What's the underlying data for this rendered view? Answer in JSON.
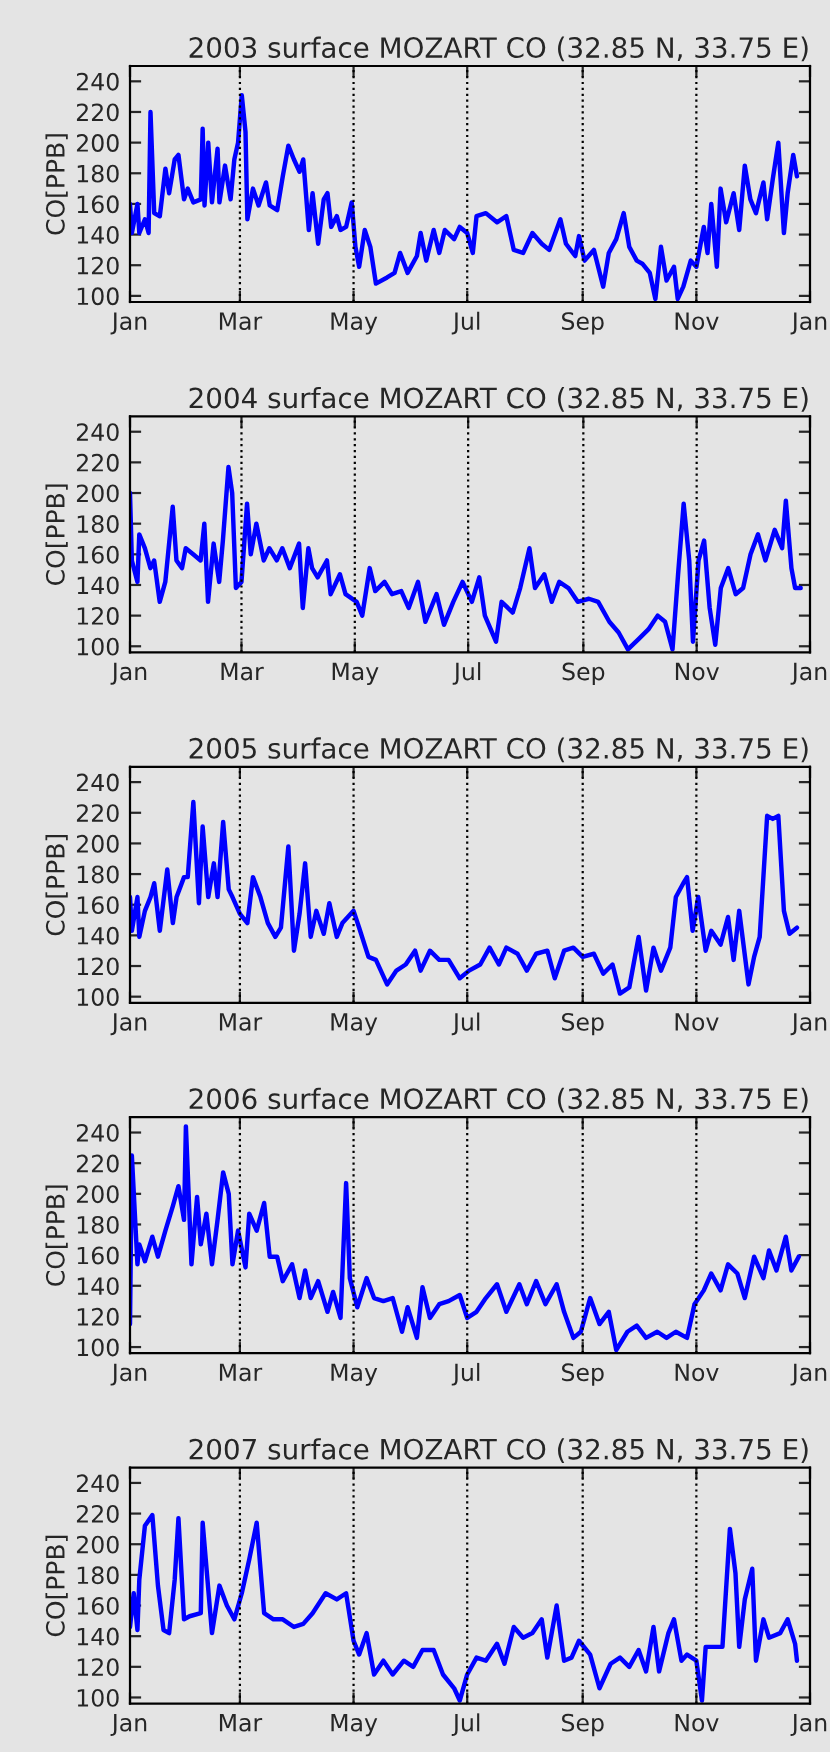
{
  "chart_data": [
    {
      "type": "line",
      "title": "2003 surface MOZART CO (32.85 N, 33.75 E)",
      "ylabel": "CO[PPB]",
      "grid": false,
      "marker": "none",
      "line_style": "solid",
      "xlim": [
        "2003-01-01",
        "2004-01-01"
      ],
      "ylim": [
        96,
        250
      ],
      "yticks": [
        100,
        120,
        140,
        160,
        180,
        200,
        220,
        240
      ],
      "xticks": [
        {
          "value": "2003-01-01",
          "label": "Jan"
        },
        {
          "value": "2003-03-01",
          "label": "Mar"
        },
        {
          "value": "2003-05-01",
          "label": "May"
        },
        {
          "value": "2003-07-01",
          "label": "Jul"
        },
        {
          "value": "2003-09-01",
          "label": "Sep"
        },
        {
          "value": "2003-11-01",
          "label": "Nov"
        },
        {
          "value": "2004-01-01",
          "label": "Jan"
        }
      ],
      "ref_lines": [
        {
          "axis": "x",
          "value": "2003-03-01",
          "color": "#000000",
          "line_style": "dotted"
        },
        {
          "axis": "x",
          "value": "2003-05-01",
          "color": "#000000",
          "line_style": "dotted"
        },
        {
          "axis": "x",
          "value": "2003-07-01",
          "color": "#000000",
          "line_style": "dotted"
        },
        {
          "axis": "x",
          "value": "2003-09-01",
          "color": "#000000",
          "line_style": "dotted"
        },
        {
          "axis": "x",
          "value": "2003-11-01",
          "color": "#000000",
          "line_style": "dotted"
        }
      ],
      "series": [
        {
          "color": "#0000ff",
          "x": [
            "2003-01-01",
            "2003-01-02",
            "2003-01-05",
            "2003-01-06",
            "2003-01-09",
            "2003-01-11",
            "2003-01-12",
            "2003-01-14",
            "2003-01-17",
            "2003-01-20",
            "2003-01-22",
            "2003-01-25",
            "2003-01-27",
            "2003-01-30",
            "2003-02-01",
            "2003-02-04",
            "2003-02-08",
            "2003-02-09",
            "2003-02-10",
            "2003-02-12",
            "2003-02-14",
            "2003-02-17",
            "2003-02-18",
            "2003-02-21",
            "2003-02-24",
            "2003-02-26",
            "2003-02-28",
            "2003-03-02",
            "2003-03-04",
            "2003-03-05",
            "2003-03-08",
            "2003-03-11",
            "2003-03-15",
            "2003-03-17",
            "2003-03-21",
            "2003-03-24",
            "2003-03-27",
            "2003-03-30",
            "2003-04-02",
            "2003-04-04",
            "2003-04-07",
            "2003-04-09",
            "2003-04-12",
            "2003-04-15",
            "2003-04-17",
            "2003-04-19",
            "2003-04-22",
            "2003-04-24",
            "2003-04-27",
            "2003-04-30",
            "2003-05-02",
            "2003-05-04",
            "2003-05-07",
            "2003-05-10",
            "2003-05-13",
            "2003-05-19",
            "2003-05-23",
            "2003-05-26",
            "2003-05-30",
            "2003-06-04",
            "2003-06-06",
            "2003-06-09",
            "2003-06-13",
            "2003-06-16",
            "2003-06-19",
            "2003-06-24",
            "2003-06-27",
            "2003-07-01",
            "2003-07-04",
            "2003-07-06",
            "2003-07-11",
            "2003-07-17",
            "2003-07-22",
            "2003-07-26",
            "2003-07-31",
            "2003-08-05",
            "2003-08-10",
            "2003-08-14",
            "2003-08-20",
            "2003-08-23",
            "2003-08-28",
            "2003-08-30",
            "2003-09-02",
            "2003-09-07",
            "2003-09-12",
            "2003-09-15",
            "2003-09-19",
            "2003-09-23",
            "2003-09-26",
            "2003-09-30",
            "2003-10-03",
            "2003-10-07",
            "2003-10-10",
            "2003-10-13",
            "2003-10-16",
            "2003-10-20",
            "2003-10-22",
            "2003-10-25",
            "2003-10-29",
            "2003-11-01",
            "2003-11-05",
            "2003-11-07",
            "2003-11-09",
            "2003-11-12",
            "2003-11-14",
            "2003-11-17",
            "2003-11-21",
            "2003-11-24",
            "2003-11-27",
            "2003-11-30",
            "2003-12-03",
            "2003-12-07",
            "2003-12-09",
            "2003-12-12",
            "2003-12-15",
            "2003-12-18",
            "2003-12-20",
            "2003-12-23",
            "2003-12-25"
          ],
          "values": [
            160,
            141,
            160,
            141,
            150,
            141,
            220,
            154,
            152,
            183,
            167,
            189,
            192,
            163,
            170,
            161,
            163,
            209,
            159,
            200,
            161,
            196,
            161,
            185,
            163,
            189,
            200,
            231,
            207,
            150,
            170,
            159,
            174,
            159,
            156,
            178,
            198,
            189,
            181,
            189,
            143,
            167,
            134,
            163,
            167,
            145,
            152,
            143,
            145,
            161,
            132,
            119,
            143,
            132,
            108,
            112,
            115,
            128,
            115,
            126,
            141,
            123,
            143,
            128,
            143,
            137,
            145,
            141,
            128,
            152,
            154,
            148,
            152,
            130,
            128,
            141,
            134,
            130,
            150,
            134,
            126,
            139,
            123,
            130,
            106,
            128,
            137,
            154,
            132,
            123,
            121,
            115,
            98,
            132,
            110,
            119,
            98,
            106,
            123,
            119,
            145,
            128,
            160,
            119,
            170,
            148,
            167,
            143,
            185,
            163,
            154,
            174,
            150,
            176,
            200,
            141,
            167,
            192,
            178
          ]
        }
      ]
    },
    {
      "type": "line",
      "title": "2004 surface MOZART CO (32.85 N, 33.75 E)",
      "ylabel": "CO[PPB]",
      "grid": false,
      "marker": "none",
      "line_style": "solid",
      "xlim": [
        "2004-01-01",
        "2005-01-01"
      ],
      "ylim": [
        96,
        250
      ],
      "yticks": [
        100,
        120,
        140,
        160,
        180,
        200,
        220,
        240
      ],
      "xticks": [
        {
          "value": "2004-01-01",
          "label": "Jan"
        },
        {
          "value": "2004-03-01",
          "label": "Mar"
        },
        {
          "value": "2004-05-01",
          "label": "May"
        },
        {
          "value": "2004-07-01",
          "label": "Jul"
        },
        {
          "value": "2004-09-01",
          "label": "Sep"
        },
        {
          "value": "2004-11-01",
          "label": "Nov"
        },
        {
          "value": "2005-01-01",
          "label": "Jan"
        }
      ],
      "ref_lines": [
        {
          "axis": "x",
          "value": "2004-03-01",
          "color": "#000000",
          "line_style": "dotted"
        },
        {
          "axis": "x",
          "value": "2004-05-01",
          "color": "#000000",
          "line_style": "dotted"
        },
        {
          "axis": "x",
          "value": "2004-07-01",
          "color": "#000000",
          "line_style": "dotted"
        },
        {
          "axis": "x",
          "value": "2004-09-01",
          "color": "#000000",
          "line_style": "dotted"
        },
        {
          "axis": "x",
          "value": "2004-11-01",
          "color": "#000000",
          "line_style": "dotted"
        }
      ],
      "series": [
        {
          "color": "#0000ff",
          "x": [
            "2004-01-01",
            "2004-01-02",
            "2004-01-05",
            "2004-01-06",
            "2004-01-09",
            "2004-01-12",
            "2004-01-14",
            "2004-01-17",
            "2004-01-20",
            "2004-01-24",
            "2004-01-26",
            "2004-01-29",
            "2004-01-31",
            "2004-02-04",
            "2004-02-08",
            "2004-02-10",
            "2004-02-12",
            "2004-02-15",
            "2004-02-18",
            "2004-02-20",
            "2004-02-23",
            "2004-02-25",
            "2004-02-27",
            "2004-03-01",
            "2004-03-04",
            "2004-03-06",
            "2004-03-09",
            "2004-03-13",
            "2004-03-16",
            "2004-03-20",
            "2004-03-23",
            "2004-03-27",
            "2004-04-01",
            "2004-04-03",
            "2004-04-06",
            "2004-04-08",
            "2004-04-11",
            "2004-04-16",
            "2004-04-18",
            "2004-04-23",
            "2004-04-26",
            "2004-05-02",
            "2004-05-05",
            "2004-05-09",
            "2004-05-12",
            "2004-05-17",
            "2004-05-21",
            "2004-05-26",
            "2004-05-30",
            "2004-06-04",
            "2004-06-08",
            "2004-06-14",
            "2004-06-18",
            "2004-06-23",
            "2004-06-28",
            "2004-07-03",
            "2004-07-07",
            "2004-07-10",
            "2004-07-16",
            "2004-07-19",
            "2004-07-25",
            "2004-07-29",
            "2004-08-03",
            "2004-08-06",
            "2004-08-11",
            "2004-08-15",
            "2004-08-19",
            "2004-08-24",
            "2004-08-29",
            "2004-09-04",
            "2004-09-09",
            "2004-09-15",
            "2004-09-20",
            "2004-09-25",
            "2004-10-01",
            "2004-10-06",
            "2004-10-11",
            "2004-10-15",
            "2004-10-19",
            "2004-10-22",
            "2004-10-25",
            "2004-10-28",
            "2004-10-30",
            "2004-11-02",
            "2004-11-05",
            "2004-11-08",
            "2004-11-11",
            "2004-11-14",
            "2004-11-18",
            "2004-11-22",
            "2004-11-26",
            "2004-11-30",
            "2004-12-04",
            "2004-12-08",
            "2004-12-13",
            "2004-12-17",
            "2004-12-19",
            "2004-12-22",
            "2004-12-24",
            "2004-12-27"
          ],
          "values": [
            200,
            156,
            142,
            173,
            164,
            151,
            156,
            129,
            142,
            191,
            156,
            151,
            164,
            160,
            156,
            180,
            129,
            167,
            142,
            169,
            217,
            200,
            138,
            142,
            193,
            160,
            180,
            156,
            164,
            156,
            164,
            151,
            167,
            125,
            164,
            151,
            145,
            156,
            134,
            147,
            134,
            129,
            120,
            151,
            136,
            142,
            134,
            136,
            125,
            142,
            116,
            134,
            114,
            129,
            142,
            129,
            145,
            120,
            103,
            129,
            122,
            138,
            164,
            138,
            147,
            129,
            142,
            138,
            129,
            131,
            129,
            116,
            109,
            98,
            105,
            111,
            120,
            116,
            98,
            147,
            193,
            156,
            103,
            156,
            169,
            125,
            101,
            138,
            151,
            134,
            138,
            160,
            173,
            156,
            176,
            164,
            195,
            151,
            138,
            138
          ]
        }
      ]
    },
    {
      "type": "line",
      "title": "2005 surface MOZART CO (32.85 N, 33.75 E)",
      "ylabel": "CO[PPB]",
      "grid": false,
      "marker": "none",
      "line_style": "solid",
      "xlim": [
        "2005-01-01",
        "2006-01-01"
      ],
      "ylim": [
        96,
        250
      ],
      "yticks": [
        100,
        120,
        140,
        160,
        180,
        200,
        220,
        240
      ],
      "xticks": [
        {
          "value": "2005-01-01",
          "label": "Jan"
        },
        {
          "value": "2005-03-01",
          "label": "Mar"
        },
        {
          "value": "2005-05-01",
          "label": "May"
        },
        {
          "value": "2005-07-01",
          "label": "Jul"
        },
        {
          "value": "2005-09-01",
          "label": "Sep"
        },
        {
          "value": "2005-11-01",
          "label": "Nov"
        },
        {
          "value": "2006-01-01",
          "label": "Jan"
        }
      ],
      "ref_lines": [
        {
          "axis": "x",
          "value": "2005-03-01",
          "color": "#000000",
          "line_style": "dotted"
        },
        {
          "axis": "x",
          "value": "2005-05-01",
          "color": "#000000",
          "line_style": "dotted"
        },
        {
          "axis": "x",
          "value": "2005-07-01",
          "color": "#000000",
          "line_style": "dotted"
        },
        {
          "axis": "x",
          "value": "2005-09-01",
          "color": "#000000",
          "line_style": "dotted"
        },
        {
          "axis": "x",
          "value": "2005-11-01",
          "color": "#000000",
          "line_style": "dotted"
        }
      ],
      "series": [
        {
          "color": "#0000ff",
          "x": [
            "2005-01-01",
            "2005-01-02",
            "2005-01-05",
            "2005-01-06",
            "2005-01-09",
            "2005-01-12",
            "2005-01-14",
            "2005-01-17",
            "2005-01-21",
            "2005-01-24",
            "2005-01-26",
            "2005-01-30",
            "2005-02-01",
            "2005-02-04",
            "2005-02-07",
            "2005-02-09",
            "2005-02-12",
            "2005-02-15",
            "2005-02-17",
            "2005-02-20",
            "2005-02-23",
            "2005-02-25",
            "2005-03-01",
            "2005-03-05",
            "2005-03-08",
            "2005-03-12",
            "2005-03-16",
            "2005-03-20",
            "2005-03-23",
            "2005-03-27",
            "2005-03-30",
            "2005-04-02",
            "2005-04-05",
            "2005-04-08",
            "2005-04-11",
            "2005-04-15",
            "2005-04-18",
            "2005-04-22",
            "2005-04-25",
            "2005-05-01",
            "2005-05-04",
            "2005-05-09",
            "2005-05-13",
            "2005-05-19",
            "2005-05-24",
            "2005-05-29",
            "2005-06-03",
            "2005-06-06",
            "2005-06-11",
            "2005-06-16",
            "2005-06-21",
            "2005-06-27",
            "2005-07-02",
            "2005-07-08",
            "2005-07-13",
            "2005-07-18",
            "2005-07-22",
            "2005-07-28",
            "2005-08-02",
            "2005-08-07",
            "2005-08-13",
            "2005-08-17",
            "2005-08-22",
            "2005-08-27",
            "2005-09-01",
            "2005-09-07",
            "2005-09-12",
            "2005-09-17",
            "2005-09-21",
            "2005-09-26",
            "2005-10-01",
            "2005-10-05",
            "2005-10-09",
            "2005-10-13",
            "2005-10-18",
            "2005-10-21",
            "2005-10-25",
            "2005-10-27",
            "2005-10-30",
            "2005-11-02",
            "2005-11-06",
            "2005-11-09",
            "2005-11-14",
            "2005-11-18",
            "2005-11-21",
            "2005-11-24",
            "2005-11-29",
            "2005-12-02",
            "2005-12-05",
            "2005-12-09",
            "2005-12-12",
            "2005-12-15",
            "2005-12-18",
            "2005-12-21",
            "2005-12-25"
          ],
          "values": [
            165,
            143,
            165,
            139,
            156,
            165,
            174,
            143,
            183,
            148,
            165,
            178,
            178,
            227,
            161,
            211,
            165,
            187,
            165,
            214,
            170,
            165,
            154,
            148,
            178,
            165,
            148,
            139,
            145,
            198,
            130,
            154,
            187,
            139,
            156,
            141,
            161,
            139,
            148,
            156,
            145,
            126,
            124,
            108,
            117,
            121,
            130,
            117,
            130,
            124,
            124,
            112,
            117,
            121,
            132,
            121,
            132,
            128,
            117,
            128,
            130,
            112,
            130,
            132,
            126,
            128,
            115,
            121,
            102,
            106,
            139,
            104,
            132,
            117,
            132,
            165,
            174,
            178,
            143,
            165,
            130,
            143,
            134,
            152,
            124,
            156,
            108,
            126,
            139,
            218,
            216,
            218,
            156,
            141,
            145
          ]
        }
      ]
    },
    {
      "type": "line",
      "title": "2006 surface MOZART CO (32.85 N, 33.75 E)",
      "ylabel": "CO[PPB]",
      "grid": false,
      "marker": "none",
      "line_style": "solid",
      "xlim": [
        "2006-01-01",
        "2007-01-01"
      ],
      "ylim": [
        96,
        250
      ],
      "yticks": [
        100,
        120,
        140,
        160,
        180,
        200,
        220,
        240
      ],
      "xticks": [
        {
          "value": "2006-01-01",
          "label": "Jan"
        },
        {
          "value": "2006-03-01",
          "label": "Mar"
        },
        {
          "value": "2006-05-01",
          "label": "May"
        },
        {
          "value": "2006-07-01",
          "label": "Jul"
        },
        {
          "value": "2006-09-01",
          "label": "Sep"
        },
        {
          "value": "2006-11-01",
          "label": "Nov"
        },
        {
          "value": "2007-01-01",
          "label": "Jan"
        }
      ],
      "ref_lines": [
        {
          "axis": "x",
          "value": "2006-03-01",
          "color": "#000000",
          "line_style": "dotted"
        },
        {
          "axis": "x",
          "value": "2006-05-01",
          "color": "#000000",
          "line_style": "dotted"
        },
        {
          "axis": "x",
          "value": "2006-07-01",
          "color": "#000000",
          "line_style": "dotted"
        },
        {
          "axis": "x",
          "value": "2006-09-01",
          "color": "#000000",
          "line_style": "dotted"
        },
        {
          "axis": "x",
          "value": "2006-11-01",
          "color": "#000000",
          "line_style": "dotted"
        }
      ],
      "series": [
        {
          "color": "#0000ff",
          "x": [
            "2006-01-01",
            "2006-01-02",
            "2006-01-05",
            "2006-01-06",
            "2006-01-09",
            "2006-01-13",
            "2006-01-16",
            "2006-01-20",
            "2006-01-24",
            "2006-01-27",
            "2006-01-30",
            "2006-01-31",
            "2006-02-03",
            "2006-02-06",
            "2006-02-08",
            "2006-02-11",
            "2006-02-14",
            "2006-02-17",
            "2006-02-20",
            "2006-02-23",
            "2006-02-25",
            "2006-02-28",
            "2006-03-04",
            "2006-03-06",
            "2006-03-10",
            "2006-03-14",
            "2006-03-17",
            "2006-03-21",
            "2006-03-24",
            "2006-03-29",
            "2006-04-02",
            "2006-04-05",
            "2006-04-08",
            "2006-04-12",
            "2006-04-17",
            "2006-04-20",
            "2006-04-24",
            "2006-04-27",
            "2006-04-29",
            "2006-05-03",
            "2006-05-08",
            "2006-05-12",
            "2006-05-17",
            "2006-05-22",
            "2006-05-27",
            "2006-05-30",
            "2006-06-04",
            "2006-06-07",
            "2006-06-11",
            "2006-06-16",
            "2006-06-21",
            "2006-06-27",
            "2006-07-01",
            "2006-07-06",
            "2006-07-11",
            "2006-07-17",
            "2006-07-22",
            "2006-07-29",
            "2006-08-02",
            "2006-08-07",
            "2006-08-12",
            "2006-08-18",
            "2006-08-22",
            "2006-08-27",
            "2006-08-31",
            "2006-09-05",
            "2006-09-10",
            "2006-09-15",
            "2006-09-19",
            "2006-09-25",
            "2006-09-30",
            "2006-10-05",
            "2006-10-11",
            "2006-10-16",
            "2006-10-21",
            "2006-10-27",
            "2006-10-31",
            "2006-11-05",
            "2006-11-09",
            "2006-11-14",
            "2006-11-18",
            "2006-11-23",
            "2006-11-27",
            "2006-12-02",
            "2006-12-07",
            "2006-12-10",
            "2006-12-14",
            "2006-12-19",
            "2006-12-22",
            "2006-12-26"
          ],
          "values": [
            115,
            225,
            154,
            167,
            156,
            172,
            159,
            176,
            192,
            205,
            183,
            244,
            154,
            198,
            167,
            187,
            154,
            183,
            214,
            200,
            154,
            176,
            152,
            187,
            176,
            194,
            159,
            159,
            143,
            154,
            132,
            150,
            132,
            143,
            123,
            136,
            119,
            207,
            145,
            126,
            145,
            132,
            130,
            132,
            110,
            126,
            106,
            139,
            119,
            128,
            130,
            134,
            119,
            123,
            132,
            141,
            123,
            141,
            128,
            143,
            128,
            141,
            123,
            106,
            110,
            132,
            115,
            123,
            98,
            110,
            114,
            106,
            110,
            106,
            110,
            106,
            128,
            137,
            148,
            137,
            154,
            148,
            132,
            159,
            145,
            163,
            150,
            172,
            150,
            159
          ]
        }
      ]
    },
    {
      "type": "line",
      "title": "2007 surface MOZART CO (32.85 N, 33.75 E)",
      "ylabel": "CO[PPB]",
      "grid": false,
      "marker": "none",
      "line_style": "solid",
      "xlim": [
        "2007-01-01",
        "2008-01-01"
      ],
      "ylim": [
        96,
        250
      ],
      "yticks": [
        100,
        120,
        140,
        160,
        180,
        200,
        220,
        240
      ],
      "xticks": [
        {
          "value": "2007-01-01",
          "label": "Jan"
        },
        {
          "value": "2007-03-01",
          "label": "Mar"
        },
        {
          "value": "2007-05-01",
          "label": "May"
        },
        {
          "value": "2007-07-01",
          "label": "Jul"
        },
        {
          "value": "2007-09-01",
          "label": "Sep"
        },
        {
          "value": "2007-11-01",
          "label": "Nov"
        },
        {
          "value": "2008-01-01",
          "label": "Jan"
        }
      ],
      "ref_lines": [
        {
          "axis": "x",
          "value": "2007-03-01",
          "color": "#000000",
          "line_style": "dotted"
        },
        {
          "axis": "x",
          "value": "2007-05-01",
          "color": "#000000",
          "line_style": "dotted"
        },
        {
          "axis": "x",
          "value": "2007-07-01",
          "color": "#000000",
          "line_style": "dotted"
        },
        {
          "axis": "x",
          "value": "2007-09-01",
          "color": "#000000",
          "line_style": "dotted"
        },
        {
          "axis": "x",
          "value": "2007-11-01",
          "color": "#000000",
          "line_style": "dotted"
        }
      ],
      "series": [
        {
          "color": "#0000ff",
          "x": [
            "2007-01-01",
            "2007-01-03",
            "2007-01-05",
            "2007-01-06",
            "2007-01-09",
            "2007-01-13",
            "2007-01-16",
            "2007-01-19",
            "2007-01-22",
            "2007-01-25",
            "2007-01-27",
            "2007-01-30",
            "2007-02-02",
            "2007-02-08",
            "2007-02-09",
            "2007-02-14",
            "2007-02-18",
            "2007-02-22",
            "2007-02-26",
            "2007-03-02",
            "2007-03-06",
            "2007-03-10",
            "2007-03-14",
            "2007-03-19",
            "2007-03-24",
            "2007-03-30",
            "2007-04-04",
            "2007-04-09",
            "2007-04-16",
            "2007-04-22",
            "2007-04-27",
            "2007-05-01",
            "2007-05-04",
            "2007-05-08",
            "2007-05-12",
            "2007-05-17",
            "2007-05-22",
            "2007-05-28",
            "2007-06-02",
            "2007-06-07",
            "2007-06-13",
            "2007-06-18",
            "2007-06-24",
            "2007-06-27",
            "2007-07-01",
            "2007-07-06",
            "2007-07-11",
            "2007-07-17",
            "2007-07-21",
            "2007-07-26",
            "2007-07-31",
            "2007-08-05",
            "2007-08-10",
            "2007-08-13",
            "2007-08-18",
            "2007-08-22",
            "2007-08-26",
            "2007-08-30",
            "2007-09-05",
            "2007-09-10",
            "2007-09-16",
            "2007-09-21",
            "2007-09-26",
            "2007-10-01",
            "2007-10-05",
            "2007-10-09",
            "2007-10-12",
            "2007-10-17",
            "2007-10-20",
            "2007-10-24",
            "2007-10-27",
            "2007-11-01",
            "2007-11-04",
            "2007-11-06",
            "2007-11-10",
            "2007-11-15",
            "2007-11-19",
            "2007-11-22",
            "2007-11-24",
            "2007-11-27",
            "2007-12-01",
            "2007-12-03",
            "2007-12-07",
            "2007-12-10",
            "2007-12-16",
            "2007-12-20",
            "2007-12-24",
            "2007-12-25"
          ],
          "values": [
            146,
            168,
            144,
            177,
            212,
            219,
            173,
            144,
            142,
            177,
            217,
            151,
            153,
            155,
            214,
            142,
            173,
            160,
            151,
            168,
            190,
            214,
            155,
            151,
            151,
            146,
            148,
            155,
            168,
            164,
            168,
            137,
            128,
            142,
            115,
            124,
            115,
            124,
            120,
            131,
            131,
            115,
            106,
            98,
            115,
            126,
            124,
            135,
            122,
            146,
            139,
            142,
            151,
            126,
            160,
            124,
            126,
            137,
            128,
            106,
            122,
            126,
            120,
            131,
            117,
            146,
            117,
            142,
            151,
            124,
            128,
            124,
            98,
            133,
            133,
            133,
            210,
            181,
            133,
            164,
            184,
            124,
            151,
            139,
            142,
            151,
            135,
            124
          ]
        }
      ]
    }
  ]
}
